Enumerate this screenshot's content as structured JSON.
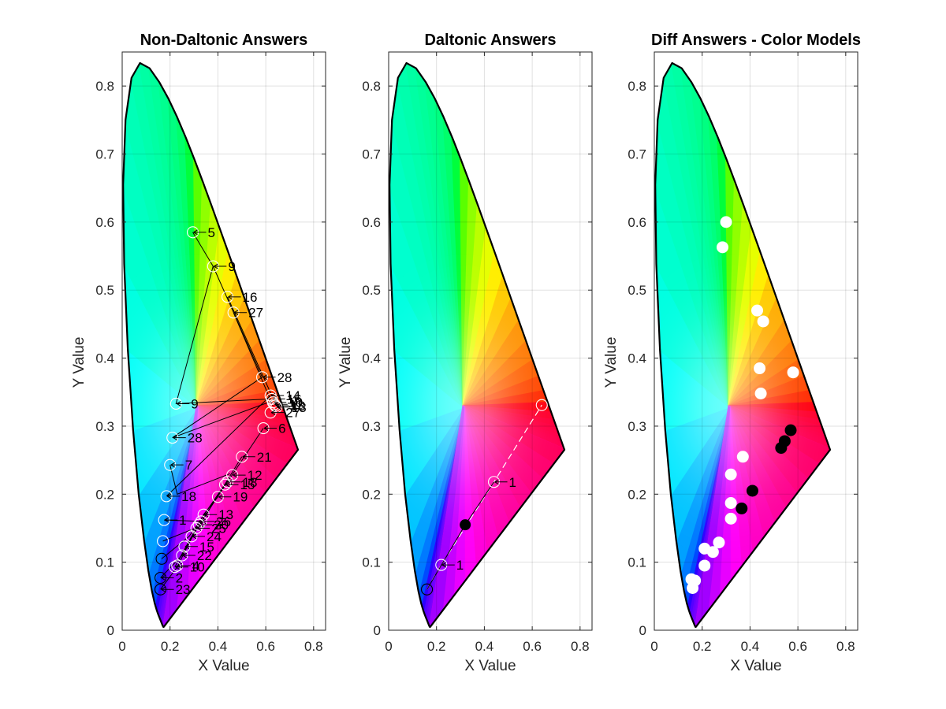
{
  "figure": {
    "background": "#ffffff"
  },
  "chart_data": [
    {
      "type": "scatter",
      "title": "Non-Daltonic Answers",
      "xlabel": "X Value",
      "ylabel": "Y Value",
      "xlim": [
        0,
        0.85
      ],
      "ylim": [
        0,
        0.85
      ],
      "xticks": [
        "0",
        "0.2",
        "0.4",
        "0.6",
        "0.8"
      ],
      "yticks": [
        "0",
        "0.1",
        "0.2",
        "0.3",
        "0.4",
        "0.5",
        "0.6",
        "0.7",
        "0.8"
      ],
      "grid": true,
      "background": "CIE 1931 chromaticity diagram",
      "segments": [
        [
          [
            0.295,
            0.585
          ],
          [
            0.38,
            0.535
          ],
          [
            0.585,
            0.372
          ]
        ],
        [
          [
            0.38,
            0.535
          ],
          [
            0.225,
            0.333
          ],
          [
            0.62,
            0.34
          ]
        ],
        [
          [
            0.44,
            0.49
          ],
          [
            0.625,
            0.345
          ]
        ],
        [
          [
            0.465,
            0.467
          ],
          [
            0.63,
            0.33
          ]
        ],
        [
          [
            0.585,
            0.372
          ],
          [
            0.21,
            0.283
          ],
          [
            0.635,
            0.338
          ]
        ],
        [
          [
            0.2,
            0.243
          ],
          [
            0.23,
            0.2
          ],
          [
            0.45,
            0.23
          ]
        ],
        [
          [
            0.185,
            0.197
          ],
          [
            0.62,
            0.345
          ]
        ],
        [
          [
            0.175,
            0.162
          ],
          [
            0.33,
            0.16
          ],
          [
            0.59,
            0.297
          ]
        ],
        [
          [
            0.17,
            0.131
          ],
          [
            0.32,
            0.152
          ],
          [
            0.5,
            0.255
          ]
        ],
        [
          [
            0.165,
            0.105
          ],
          [
            0.28,
            0.138
          ],
          [
            0.44,
            0.22
          ]
        ],
        [
          [
            0.16,
            0.077
          ],
          [
            0.25,
            0.11
          ],
          [
            0.33,
            0.16
          ]
        ],
        [
          [
            0.16,
            0.06
          ],
          [
            0.23,
            0.093
          ],
          [
            0.31,
            0.15
          ]
        ],
        [
          [
            0.22,
            0.093
          ],
          [
            0.34,
            0.17
          ],
          [
            0.4,
            0.196
          ]
        ]
      ],
      "points": [
        {
          "x": 0.295,
          "y": 0.585,
          "label": "5"
        },
        {
          "x": 0.38,
          "y": 0.535,
          "label": "9"
        },
        {
          "x": 0.44,
          "y": 0.49,
          "label": "16"
        },
        {
          "x": 0.465,
          "y": 0.467,
          "label": "27"
        },
        {
          "x": 0.585,
          "y": 0.372,
          "label": "28"
        },
        {
          "x": 0.62,
          "y": 0.345,
          "label": "14"
        },
        {
          "x": 0.625,
          "y": 0.34,
          "label": "16"
        },
        {
          "x": 0.63,
          "y": 0.335,
          "label": "10"
        },
        {
          "x": 0.635,
          "y": 0.332,
          "label": "11"
        },
        {
          "x": 0.64,
          "y": 0.33,
          "label": "18"
        },
        {
          "x": 0.645,
          "y": 0.328,
          "label": "13"
        },
        {
          "x": 0.62,
          "y": 0.32,
          "label": "27"
        },
        {
          "x": 0.59,
          "y": 0.297,
          "label": "6"
        },
        {
          "x": 0.225,
          "y": 0.333,
          "label": "9"
        },
        {
          "x": 0.21,
          "y": 0.283,
          "label": "28"
        },
        {
          "x": 0.5,
          "y": 0.255,
          "label": "21"
        },
        {
          "x": 0.2,
          "y": 0.243,
          "label": "7"
        },
        {
          "x": 0.46,
          "y": 0.228,
          "label": "12"
        },
        {
          "x": 0.44,
          "y": 0.218,
          "label": "18"
        },
        {
          "x": 0.43,
          "y": 0.214,
          "label": "15"
        },
        {
          "x": 0.185,
          "y": 0.197,
          "label": "18"
        },
        {
          "x": 0.4,
          "y": 0.196,
          "label": "19"
        },
        {
          "x": 0.175,
          "y": 0.162,
          "label": "1"
        },
        {
          "x": 0.34,
          "y": 0.17,
          "label": "13"
        },
        {
          "x": 0.33,
          "y": 0.16,
          "label": "26"
        },
        {
          "x": 0.32,
          "y": 0.155,
          "label": "20"
        },
        {
          "x": 0.31,
          "y": 0.15,
          "label": "25"
        },
        {
          "x": 0.17,
          "y": 0.131,
          "label": ""
        },
        {
          "x": 0.29,
          "y": 0.138,
          "label": "24"
        },
        {
          "x": 0.26,
          "y": 0.123,
          "label": "15"
        },
        {
          "x": 0.165,
          "y": 0.105,
          "label": ""
        },
        {
          "x": 0.25,
          "y": 0.11,
          "label": "22"
        },
        {
          "x": 0.23,
          "y": 0.095,
          "label": "4"
        },
        {
          "x": 0.22,
          "y": 0.093,
          "label": "10"
        },
        {
          "x": 0.16,
          "y": 0.077,
          "label": "2"
        },
        {
          "x": 0.16,
          "y": 0.06,
          "label": "23"
        }
      ]
    },
    {
      "type": "scatter",
      "title": "Daltonic Answers",
      "xlabel": "X Value",
      "ylabel": "Y Value",
      "xlim": [
        0,
        0.85
      ],
      "ylim": [
        0,
        0.85
      ],
      "xticks": [
        "0",
        "0.2",
        "0.4",
        "0.6",
        "0.8"
      ],
      "yticks": [
        "0",
        "0.1",
        "0.2",
        "0.3",
        "0.4",
        "0.5",
        "0.6",
        "0.7",
        "0.8"
      ],
      "grid": true,
      "background": "CIE 1931 chromaticity diagram",
      "segments_solid": [
        [
          [
            0.16,
            0.06
          ],
          [
            0.32,
            0.155
          ],
          [
            0.44,
            0.218
          ]
        ]
      ],
      "segments_dashed": [
        [
          [
            0.16,
            0.06
          ],
          [
            0.22,
            0.096
          ],
          [
            0.44,
            0.218
          ],
          [
            0.64,
            0.331
          ]
        ]
      ],
      "points": [
        {
          "x": 0.64,
          "y": 0.331,
          "label": ""
        },
        {
          "x": 0.44,
          "y": 0.218,
          "label": "1"
        },
        {
          "x": 0.22,
          "y": 0.096,
          "label": "1"
        },
        {
          "x": 0.16,
          "y": 0.06,
          "label": ""
        }
      ],
      "filled_points": [
        {
          "x": 0.32,
          "y": 0.155
        }
      ]
    },
    {
      "type": "scatter",
      "title": "Diff Answers - Color Models",
      "xlabel": "X Value",
      "ylabel": "Y Value",
      "xlim": [
        0,
        0.85
      ],
      "ylim": [
        0,
        0.85
      ],
      "xticks": [
        "0",
        "0.2",
        "0.4",
        "0.6",
        "0.8"
      ],
      "yticks": [
        "0",
        "0.1",
        "0.2",
        "0.3",
        "0.4",
        "0.5",
        "0.6",
        "0.7",
        "0.8"
      ],
      "grid": true,
      "background": "CIE 1931 chromaticity diagram",
      "series": [
        {
          "color": "#ffffff",
          "points": [
            [
              0.3,
              0.6
            ],
            [
              0.285,
              0.563
            ],
            [
              0.43,
              0.47
            ],
            [
              0.455,
              0.454
            ],
            [
              0.44,
              0.385
            ],
            [
              0.445,
              0.348
            ],
            [
              0.58,
              0.379
            ],
            [
              0.37,
              0.255
            ],
            [
              0.32,
              0.229
            ],
            [
              0.32,
              0.187
            ],
            [
              0.32,
              0.164
            ],
            [
              0.27,
              0.129
            ],
            [
              0.245,
              0.115
            ],
            [
              0.21,
              0.12
            ],
            [
              0.21,
              0.095
            ],
            [
              0.17,
              0.073
            ],
            [
              0.155,
              0.075
            ],
            [
              0.16,
              0.062
            ]
          ]
        },
        {
          "color": "#000000",
          "points": [
            [
              0.57,
              0.294
            ],
            [
              0.545,
              0.278
            ],
            [
              0.53,
              0.268
            ],
            [
              0.41,
              0.205
            ],
            [
              0.365,
              0.179
            ]
          ]
        }
      ]
    }
  ]
}
